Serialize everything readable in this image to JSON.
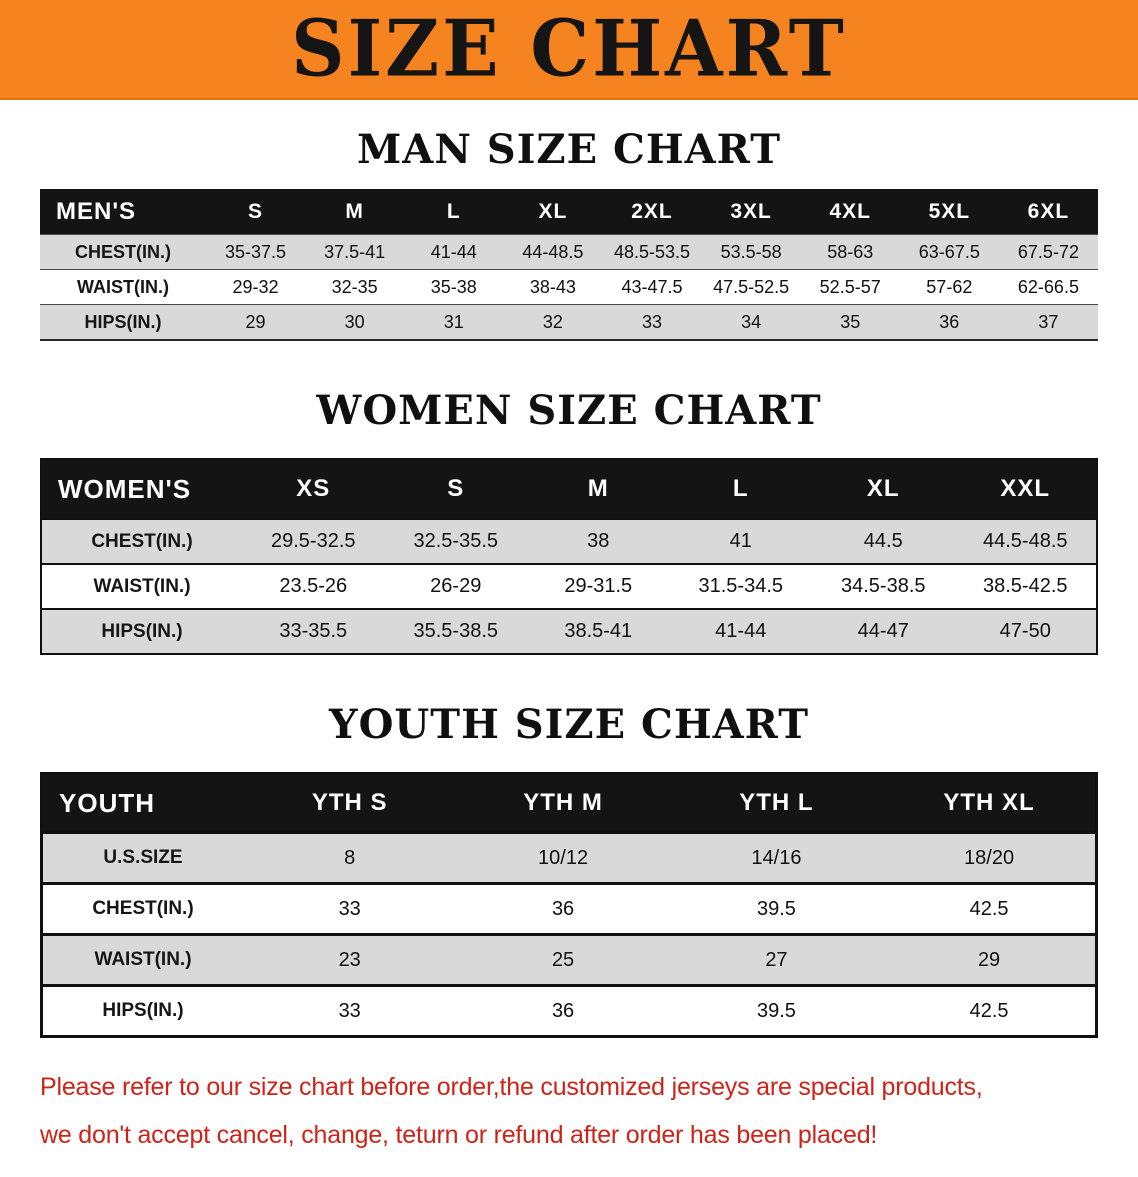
{
  "banner": {
    "title": "SIZE CHART"
  },
  "colors": {
    "banner_bg": "#F5831F",
    "table_header_bg": "#141414",
    "shaded_row_bg": "#D9D9D9",
    "disclaimer_text": "#CE2318"
  },
  "sections": [
    {
      "heading": "MAN SIZE CHART",
      "table": {
        "header": [
          "MEN'S",
          "S",
          "M",
          "L",
          "XL",
          "2XL",
          "3XL",
          "4XL",
          "5XL",
          "6XL"
        ],
        "rows": [
          [
            "CHEST(IN.)",
            "35-37.5",
            "37.5-41",
            "41-44",
            "44-48.5",
            "48.5-53.5",
            "53.5-58",
            "58-63",
            "63-67.5",
            "67.5-72"
          ],
          [
            "WAIST(IN.)",
            "29-32",
            "32-35",
            "35-38",
            "38-43",
            "43-47.5",
            "47.5-52.5",
            "52.5-57",
            "57-62",
            "62-66.5"
          ],
          [
            "HIPS(IN.)",
            "29",
            "30",
            "31",
            "32",
            "33",
            "34",
            "35",
            "36",
            "37"
          ]
        ]
      }
    },
    {
      "heading": "WOMEN SIZE CHART",
      "table": {
        "header": [
          "WOMEN'S",
          "XS",
          "S",
          "M",
          "L",
          "XL",
          "XXL"
        ],
        "rows": [
          [
            "CHEST(IN.)",
            "29.5-32.5",
            "32.5-35.5",
            "38",
            "41",
            "44.5",
            "44.5-48.5"
          ],
          [
            "WAIST(IN.)",
            "23.5-26",
            "26-29",
            "29-31.5",
            "31.5-34.5",
            "34.5-38.5",
            "38.5-42.5"
          ],
          [
            "HIPS(IN.)",
            "33-35.5",
            "35.5-38.5",
            "38.5-41",
            "41-44",
            "44-47",
            "47-50"
          ]
        ]
      }
    },
    {
      "heading": "YOUTH SIZE CHART",
      "table": {
        "header": [
          "YOUTH",
          "YTH S",
          "YTH M",
          "YTH L",
          "YTH XL"
        ],
        "rows": [
          [
            "U.S.SIZE",
            "8",
            "10/12",
            "14/16",
            "18/20"
          ],
          [
            "CHEST(IN.)",
            "33",
            "36",
            "39.5",
            "42.5"
          ],
          [
            "WAIST(IN.)",
            "23",
            "25",
            "27",
            "29"
          ],
          [
            "HIPS(IN.)",
            "33",
            "36",
            "39.5",
            "42.5"
          ]
        ]
      }
    }
  ],
  "footer": {
    "line1": "Please refer to our size chart before order,the customized jerseys are special products,",
    "line2": "we don't accept cancel, change, teturn or refund after order has been placed!"
  }
}
